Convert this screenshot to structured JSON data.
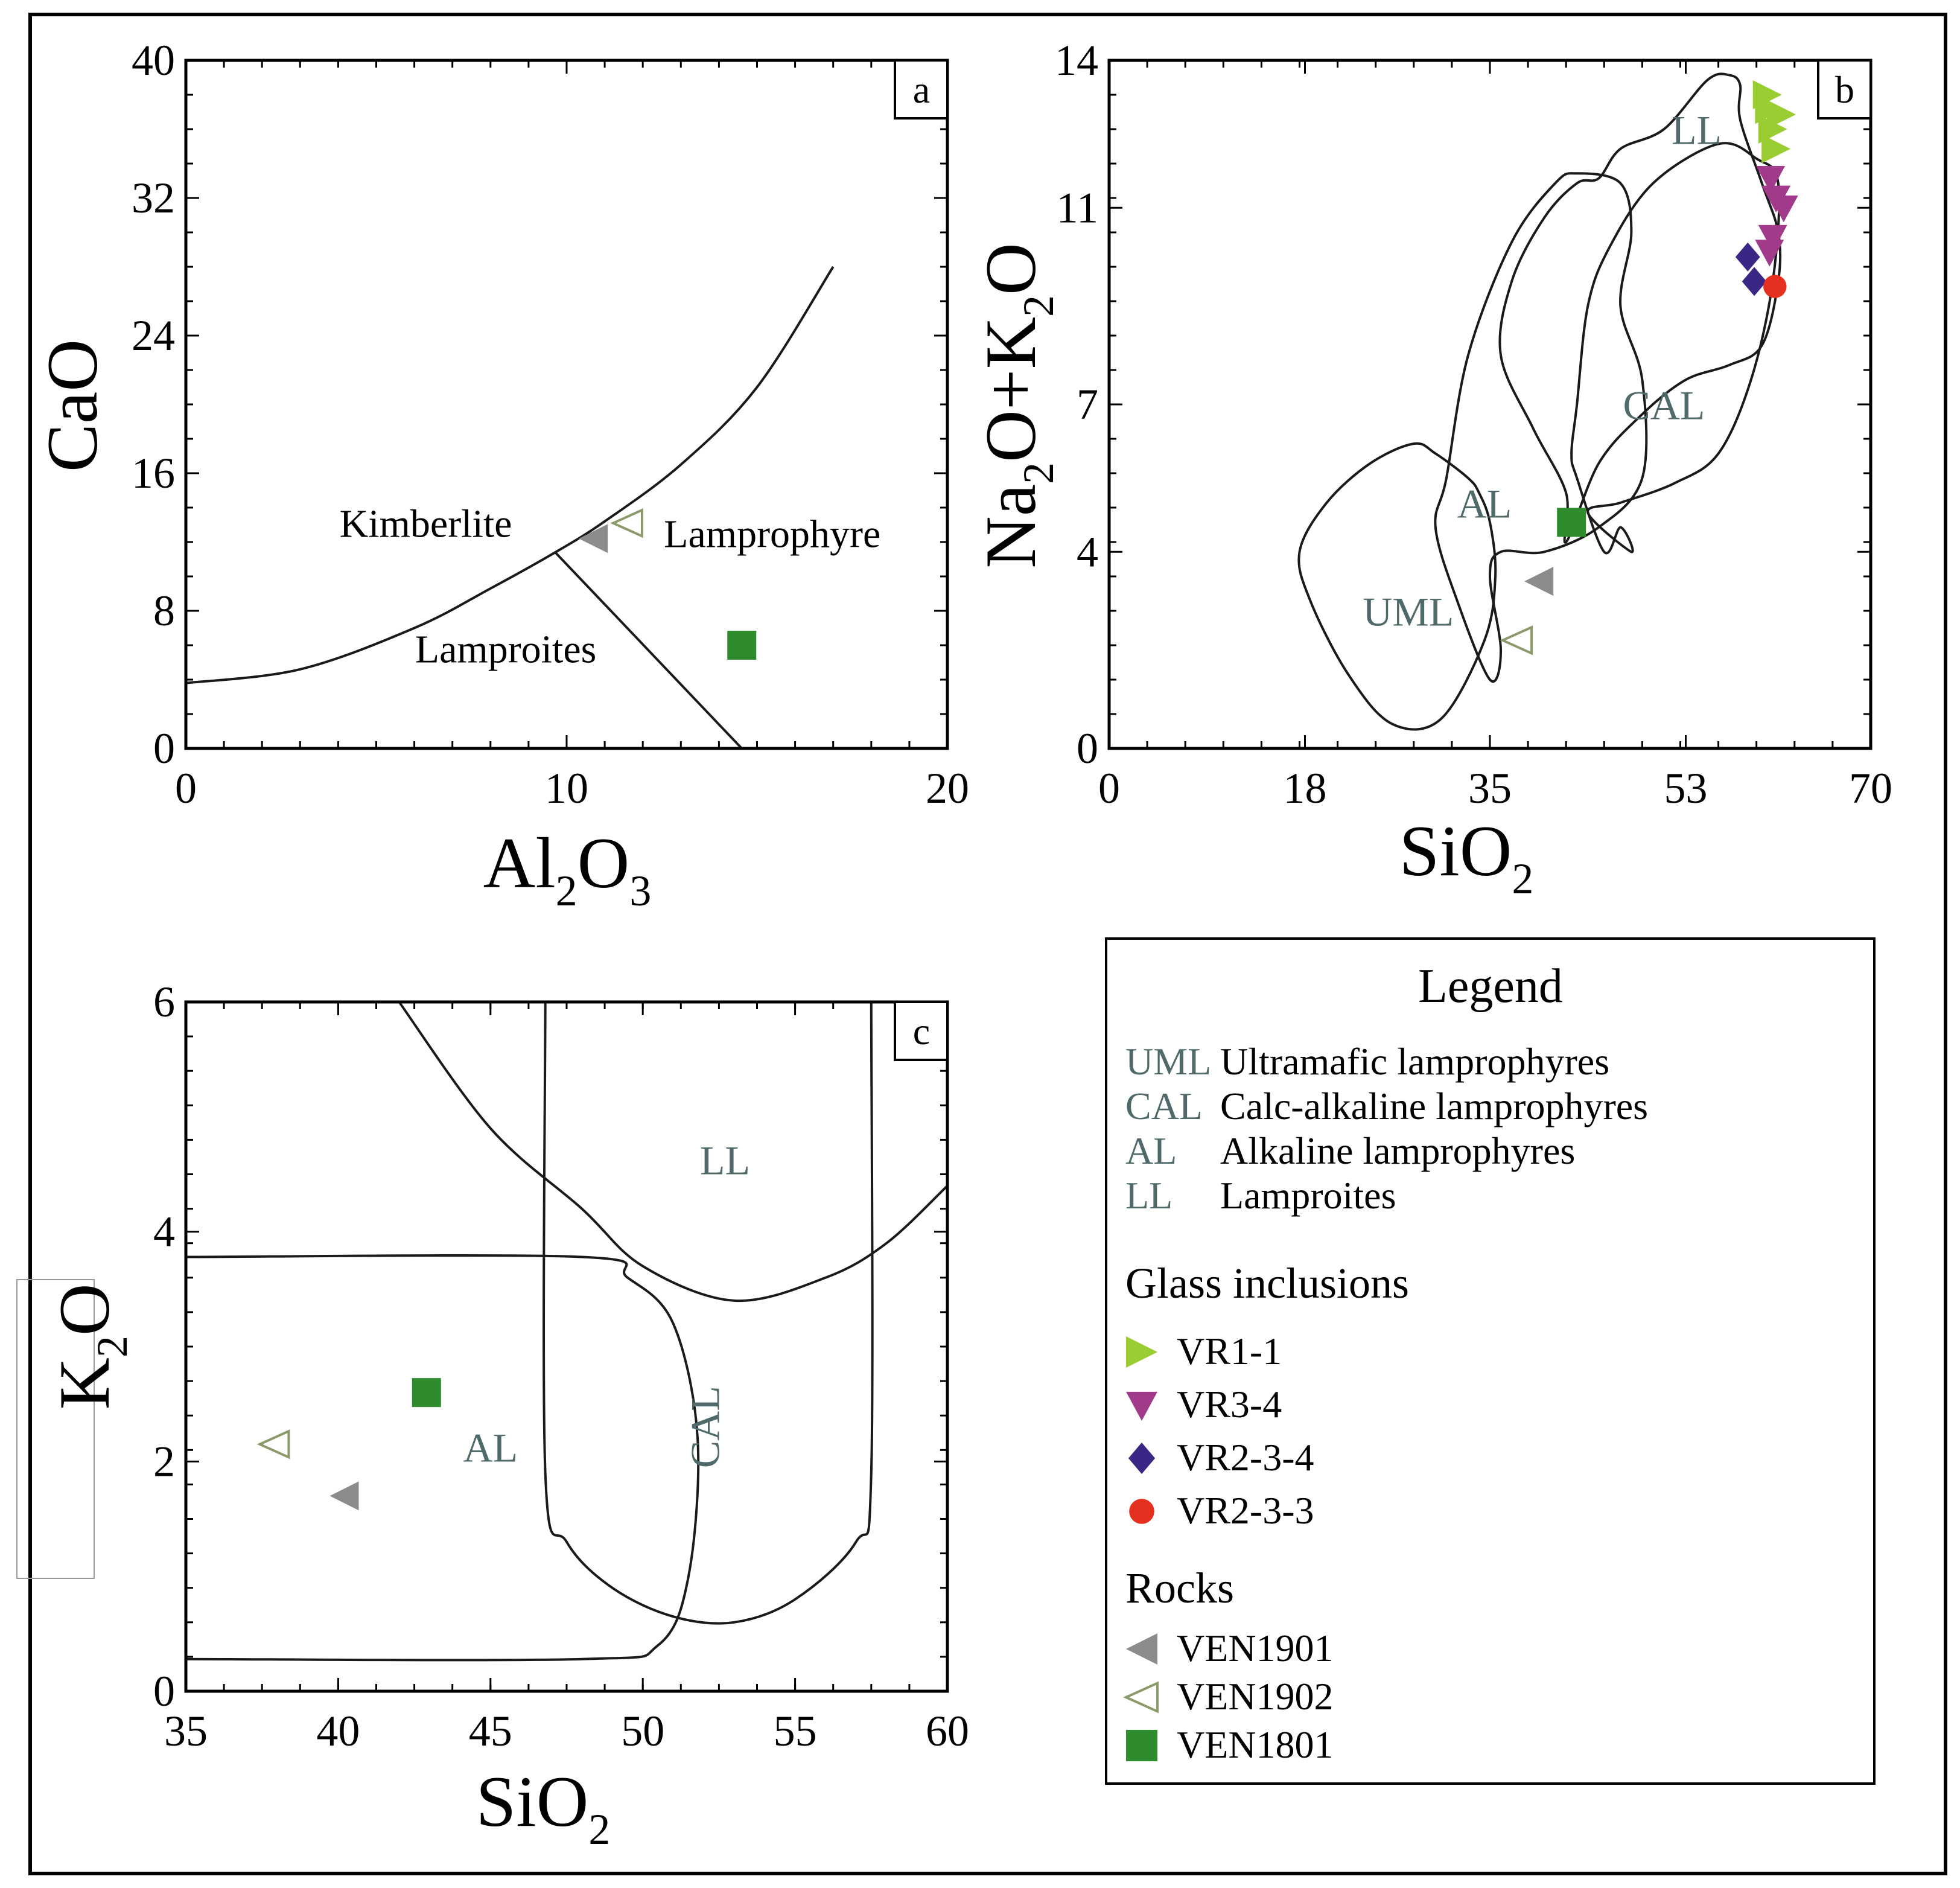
{
  "colors": {
    "VR1-1": "#9acd32",
    "VR3-4": "#a23a8c",
    "VR2-3-4": "#3a2684",
    "VR2-3-3": "#e53020",
    "VEN1901": "#8c8c8c",
    "VEN1902": "#8a9a6a",
    "VEN1801": "#2e8b2e",
    "field_label": "#506a6a"
  },
  "legend": {
    "title": "Legend",
    "fields_title": "",
    "fields": [
      {
        "abbr": "UML",
        "name": "Ultramafic lamprophyres"
      },
      {
        "abbr": "CAL",
        "name": "Calc-alkaline lamprophyres"
      },
      {
        "abbr": "AL",
        "name": "Alkaline lamprophyres"
      },
      {
        "abbr": "LL",
        "name": "Lamproites"
      }
    ],
    "glass_title": "Glass inclusions",
    "glass": [
      {
        "key": "VR1-1",
        "label": "VR1-1",
        "marker": "triangle-right"
      },
      {
        "key": "VR3-4",
        "label": "VR3-4",
        "marker": "triangle-down"
      },
      {
        "key": "VR2-3-4",
        "label": "VR2-3-4",
        "marker": "diamond"
      },
      {
        "key": "VR2-3-3",
        "label": "VR2-3-3",
        "marker": "circle"
      }
    ],
    "rocks_title": "Rocks",
    "rocks": [
      {
        "key": "VEN1901",
        "label": "VEN1901",
        "marker": "triangle-left"
      },
      {
        "key": "VEN1902",
        "label": "VEN1902",
        "marker": "triangle-left-open"
      },
      {
        "key": "VEN1801",
        "label": "VEN1801",
        "marker": "square"
      }
    ]
  },
  "chart_data": [
    {
      "panel": "a",
      "type": "scatter",
      "xlabel": "Al2O3",
      "ylabel": "CaO",
      "xlim": [
        0,
        20
      ],
      "ylim": [
        0,
        40
      ],
      "xticks": [
        0,
        10,
        20
      ],
      "yticks": [
        0,
        8,
        16,
        24,
        32,
        40
      ],
      "boundaries": [
        {
          "name": "kimberlite-upper-curve",
          "points": [
            [
              0,
              3.8
            ],
            [
              3,
              4.6
            ],
            [
              6,
              7
            ],
            [
              8,
              9.3
            ],
            [
              9.7,
              11.4
            ],
            [
              11,
              13.2
            ],
            [
              13,
              16.5
            ],
            [
              15,
              21
            ],
            [
              17,
              28
            ]
          ]
        },
        {
          "name": "lamproite-lamprophyre-divider",
          "points": [
            [
              9.7,
              11.4
            ],
            [
              14.6,
              0
            ]
          ]
        }
      ],
      "field_labels": [
        {
          "text": "Kimberlite",
          "x": 6.3,
          "y": 12.3
        },
        {
          "text": "Lamprophyre",
          "x": 15.4,
          "y": 11.7
        },
        {
          "text": "Lamproites",
          "x": 8.4,
          "y": 5.0
        }
      ],
      "series": [
        {
          "key": "VEN1901",
          "points": [
            [
              10.7,
              12.2
            ]
          ]
        },
        {
          "key": "VEN1902",
          "points": [
            [
              11.6,
              13.1
            ]
          ]
        },
        {
          "key": "VEN1801",
          "points": [
            [
              14.6,
              6.0
            ]
          ]
        }
      ]
    },
    {
      "panel": "b",
      "type": "scatter",
      "xlabel": "SiO2",
      "ylabel": "Na2O+K2O",
      "xlim": [
        0,
        70
      ],
      "ylim": [
        0,
        14
      ],
      "xticks": [
        0,
        18,
        35,
        53,
        70
      ],
      "yticks": [
        0,
        4,
        7,
        11,
        14
      ],
      "fields": [
        {
          "name": "UML",
          "points": [
            [
              30,
              6
            ],
            [
              33,
              5.5
            ],
            [
              34,
              5.2
            ],
            [
              35,
              4.6
            ],
            [
              35.5,
              3.5
            ],
            [
              34.5,
              2.2
            ],
            [
              30.5,
              0.6
            ],
            [
              26,
              0.5
            ],
            [
              22,
              1.5
            ],
            [
              18.5,
              3
            ],
            [
              17.5,
              4
            ],
            [
              20,
              5
            ],
            [
              24,
              5.8
            ],
            [
              28,
              6.2
            ]
          ]
        },
        {
          "name": "AL",
          "points": [
            [
              31,
              5.5
            ],
            [
              33,
              8
            ],
            [
              37,
              10.3
            ],
            [
              41,
              11.5
            ],
            [
              43,
              11.7
            ],
            [
              47,
              11.5
            ],
            [
              48,
              10.5
            ],
            [
              47,
              9
            ],
            [
              49,
              7.5
            ],
            [
              49,
              5.5
            ],
            [
              45,
              4.5
            ],
            [
              40,
              4
            ],
            [
              36,
              4
            ],
            [
              35,
              3.5
            ],
            [
              36,
              2
            ],
            [
              35,
              1.4
            ],
            [
              32,
              3
            ],
            [
              30,
              4.5
            ]
          ]
        },
        {
          "name": "CAL",
          "points": [
            [
              44,
              4.8
            ],
            [
              47,
              5
            ],
            [
              52,
              5.4
            ],
            [
              56,
              6
            ],
            [
              59,
              7.5
            ],
            [
              61,
              9.5
            ],
            [
              61.5,
              11.5
            ],
            [
              59.5,
              12
            ],
            [
              56,
              12.3
            ],
            [
              50,
              11.5
            ],
            [
              46,
              10.2
            ],
            [
              44,
              9
            ],
            [
              43,
              7
            ],
            [
              42.5,
              6
            ],
            [
              43,
              5.5
            ],
            [
              45.5,
              4
            ],
            [
              47,
              4.5
            ],
            [
              48,
              4
            ]
          ]
        },
        {
          "name": "LL",
          "points": [
            [
              42,
              4.2
            ],
            [
              45,
              5.8
            ],
            [
              49,
              6.8
            ],
            [
              53,
              7.5
            ],
            [
              57,
              7.8
            ],
            [
              60,
              8.2
            ],
            [
              61.5,
              9.5
            ],
            [
              61.5,
              10.5
            ],
            [
              60,
              11.5
            ],
            [
              58,
              12.8
            ],
            [
              58,
              13.5
            ],
            [
              57,
              13.7
            ],
            [
              55,
              13.6
            ],
            [
              51,
              12.6
            ],
            [
              47,
              12.2
            ],
            [
              45,
              11.6
            ],
            [
              43,
              11.5
            ],
            [
              40,
              10.8
            ],
            [
              37,
              9.5
            ],
            [
              36,
              8
            ],
            [
              39,
              6.5
            ],
            [
              42,
              5.2
            ]
          ]
        }
      ],
      "field_labels": [
        {
          "text": "LL",
          "x": 54,
          "y": 12.3
        },
        {
          "text": "CAL",
          "x": 51,
          "y": 6.7
        },
        {
          "text": "AL",
          "x": 34.5,
          "y": 4.7
        },
        {
          "text": "UML",
          "x": 27.5,
          "y": 2.5
        }
      ],
      "series": [
        {
          "key": "VR1-1",
          "points": [
            [
              60.5,
              13.3
            ],
            [
              60.7,
              13.0
            ],
            [
              61,
              12.6
            ],
            [
              61.3,
              12.2
            ],
            [
              61.8,
              12.9
            ]
          ]
        },
        {
          "key": "VR3-4",
          "points": [
            [
              60.8,
              11.6
            ],
            [
              61.3,
              11.2
            ],
            [
              62.0,
              11.0
            ],
            [
              61.0,
              10.4
            ],
            [
              60.7,
              10.1
            ]
          ]
        },
        {
          "key": "VR2-3-4",
          "points": [
            [
              58.7,
              10.0
            ],
            [
              59.3,
              9.5
            ]
          ]
        },
        {
          "key": "VR2-3-3",
          "points": [
            [
              61.2,
              9.4
            ]
          ]
        },
        {
          "key": "VEN1901",
          "points": [
            [
              39.5,
              3.4
            ]
          ]
        },
        {
          "key": "VEN1902",
          "points": [
            [
              37.5,
              2.2
            ]
          ]
        },
        {
          "key": "VEN1801",
          "points": [
            [
              42.5,
              4.6
            ]
          ]
        }
      ]
    },
    {
      "panel": "c",
      "type": "scatter",
      "xlabel": "SiO2",
      "ylabel": "K2O",
      "xlim": [
        35,
        60
      ],
      "ylim": [
        0,
        6
      ],
      "xticks": [
        35,
        40,
        45,
        50,
        55,
        60
      ],
      "yticks": [
        0,
        2,
        4,
        6
      ],
      "boundaries": [
        {
          "name": "LL-lower-curve",
          "points": [
            [
              42,
              6
            ],
            [
              45,
              4.9
            ],
            [
              48,
              4.2
            ],
            [
              50,
              3.7
            ],
            [
              53,
              3.4
            ],
            [
              56,
              3.6
            ],
            [
              58,
              3.9
            ],
            [
              60,
              4.4
            ]
          ]
        },
        {
          "name": "CAL-box",
          "points": [
            [
              46.8,
              6
            ],
            [
              46.8,
              1.9
            ],
            [
              47.5,
              1.3
            ],
            [
              49,
              0.9
            ],
            [
              51,
              0.65
            ],
            [
              53,
              0.6
            ],
            [
              55,
              0.8
            ],
            [
              57,
              1.3
            ],
            [
              57.5,
              1.9
            ],
            [
              57.5,
              6
            ]
          ]
        },
        {
          "name": "AL-upper-and-bounding-curve",
          "points": [
            [
              35,
              3.78
            ],
            [
              48,
              3.78
            ],
            [
              49.5,
              3.6
            ],
            [
              51,
              3.2
            ],
            [
              51.8,
              2.2
            ],
            [
              51.5,
              1.0
            ],
            [
              50.5,
              0.4
            ],
            [
              48,
              0.28
            ],
            [
              35,
              0.28
            ]
          ]
        }
      ],
      "field_labels": [
        {
          "text": "LL",
          "x": 52.7,
          "y": 4.5
        },
        {
          "text": "AL",
          "x": 45,
          "y": 2.0
        },
        {
          "text": "CAL",
          "x": 52.5,
          "y": 2.3
        }
      ],
      "series": [
        {
          "key": "VEN1901",
          "points": [
            [
              40.2,
              1.7
            ]
          ]
        },
        {
          "key": "VEN1902",
          "points": [
            [
              37.9,
              2.15
            ]
          ]
        },
        {
          "key": "VEN1801",
          "points": [
            [
              42.9,
              2.6
            ]
          ]
        }
      ]
    }
  ]
}
